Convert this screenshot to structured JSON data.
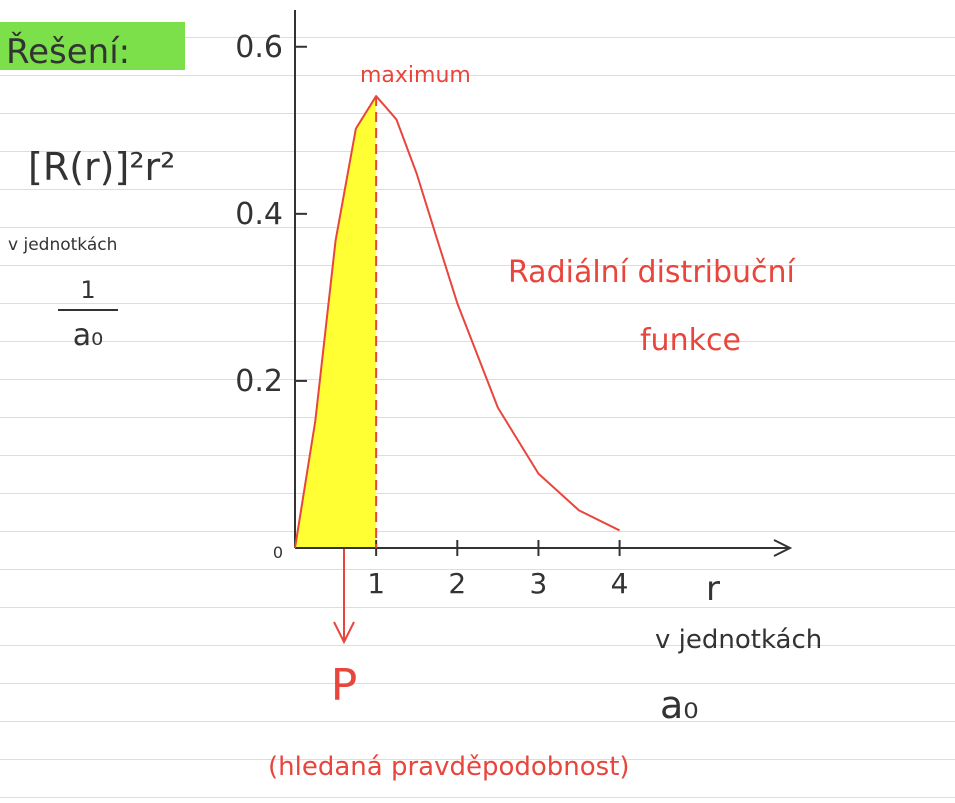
{
  "chart_data": {
    "type": "line",
    "title": "Řešení:",
    "ylabel": "[R(r)]²r²",
    "y_unit_label": "v jednotkách",
    "y_unit_numerator": "1",
    "y_unit_denominator": "a₀",
    "xlabel": "r",
    "x_unit_label": "v jednotkách",
    "x_unit_symbol": "a₀",
    "annotations": {
      "peak": "maximum",
      "curve_line1": "Radiální distribuční",
      "curve_line2": "funkce",
      "area": "P",
      "area_note": "(hledaná pravděpodobnost)"
    },
    "x": [
      0,
      0.25,
      0.5,
      0.75,
      1,
      1.25,
      1.5,
      1.75,
      2,
      2.5,
      3,
      3.5,
      4
    ],
    "values": [
      0,
      0.152,
      0.368,
      0.502,
      0.541,
      0.513,
      0.448,
      0.37,
      0.293,
      0.168,
      0.089,
      0.045,
      0.021
    ],
    "color": "#e8453c",
    "fill_color": "#ffff33",
    "highlight_x": 1,
    "xlim": [
      0,
      6.1
    ],
    "ylim": [
      0,
      0.644
    ],
    "xticks": [
      1,
      2,
      3,
      4
    ],
    "yticks": [
      0,
      0.2,
      0.4,
      0.6
    ]
  }
}
